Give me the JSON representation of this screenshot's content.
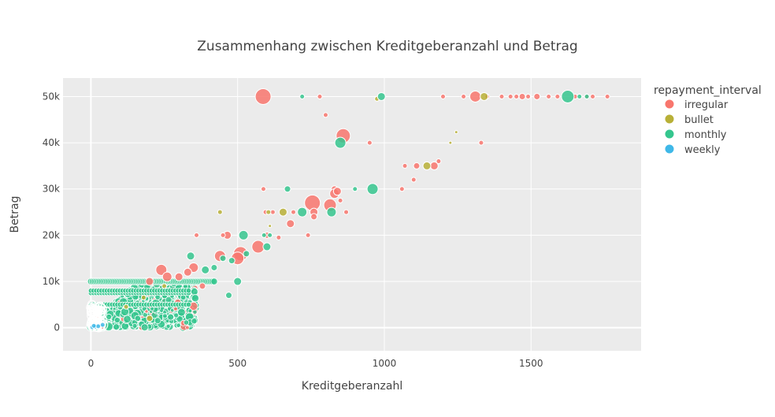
{
  "chart_data": {
    "type": "scatter",
    "title": "Zusammenhang zwischen Kreditgeberanzahl  und Betrag",
    "xlabel": "Kreditgeberanzahl",
    "ylabel": "Betrag",
    "xlim": [
      -95,
      1875
    ],
    "ylim": [
      -5000,
      54000
    ],
    "x_ticks": [
      0,
      500,
      1000,
      1500
    ],
    "x_tick_labels": [
      "0",
      "500",
      "1000",
      "1500"
    ],
    "y_ticks": [
      0,
      10000,
      20000,
      30000,
      40000,
      50000
    ],
    "y_tick_labels": [
      "0",
      "10k",
      "20k",
      "30k",
      "40k",
      "50k"
    ],
    "grid": true,
    "legend_title": "repayment_interval",
    "legend_position": "top-right",
    "bubble_sizes": true,
    "series": [
      {
        "name": "irregular",
        "color": "#f8766d",
        "points": [
          [
            587,
            50000,
            10
          ],
          [
            780,
            50000,
            3
          ],
          [
            1200,
            50000,
            3
          ],
          [
            1270,
            50000,
            3
          ],
          [
            1310,
            50000,
            7
          ],
          [
            1350,
            50000,
            3
          ],
          [
            1400,
            50000,
            3
          ],
          [
            1430,
            50000,
            3
          ],
          [
            1450,
            50000,
            3
          ],
          [
            1470,
            50000,
            4
          ],
          [
            1490,
            50000,
            3
          ],
          [
            1520,
            50000,
            4
          ],
          [
            1560,
            50000,
            3
          ],
          [
            1590,
            50000,
            3
          ],
          [
            1650,
            50000,
            3
          ],
          [
            1690,
            50000,
            3
          ],
          [
            1710,
            50000,
            3
          ],
          [
            1760,
            50000,
            3
          ],
          [
            800,
            46000,
            3
          ],
          [
            860,
            41500,
            9
          ],
          [
            950,
            40000,
            3
          ],
          [
            1330,
            40000,
            3
          ],
          [
            1185,
            36000,
            3
          ],
          [
            1170,
            35000,
            5
          ],
          [
            1110,
            35000,
            4
          ],
          [
            1070,
            35000,
            3
          ],
          [
            1100,
            32000,
            3
          ],
          [
            1060,
            30000,
            3
          ],
          [
            588,
            30000,
            3
          ],
          [
            830,
            30000,
            4
          ],
          [
            830,
            29000,
            6
          ],
          [
            840,
            29500,
            5
          ],
          [
            850,
            27500,
            3
          ],
          [
            755,
            27000,
            10
          ],
          [
            815,
            26500,
            8
          ],
          [
            760,
            25000,
            5
          ],
          [
            620,
            25000,
            3
          ],
          [
            870,
            25000,
            3
          ],
          [
            690,
            25000,
            3
          ],
          [
            595,
            25000,
            3
          ],
          [
            680,
            22500,
            5
          ],
          [
            760,
            24000,
            4
          ],
          [
            740,
            20000,
            3
          ],
          [
            465,
            20000,
            5
          ],
          [
            600,
            20000,
            4
          ],
          [
            450,
            20000,
            3
          ],
          [
            360,
            20000,
            3
          ],
          [
            640,
            19500,
            3
          ],
          [
            570,
            17500,
            8
          ],
          [
            510,
            16000,
            9
          ],
          [
            500,
            15000,
            8
          ],
          [
            440,
            15500,
            7
          ],
          [
            350,
            13000,
            6
          ],
          [
            330,
            12000,
            5
          ],
          [
            300,
            11000,
            5
          ],
          [
            240,
            12500,
            7
          ],
          [
            260,
            11000,
            6
          ],
          [
            200,
            10000,
            5
          ],
          [
            380,
            9000,
            4
          ]
        ]
      },
      {
        "name": "bullet",
        "color": "#b8b037",
        "points": [
          [
            975,
            49500,
            3
          ],
          [
            1340,
            50000,
            5
          ],
          [
            1245,
            42300,
            2
          ],
          [
            1225,
            40000,
            2
          ],
          [
            1145,
            35000,
            5
          ],
          [
            605,
            25000,
            3
          ],
          [
            655,
            25000,
            5
          ],
          [
            440,
            25000,
            3
          ],
          [
            610,
            22000,
            2
          ],
          [
            200,
            2000,
            4
          ],
          [
            180,
            6500,
            3
          ],
          [
            250,
            9000,
            3
          ],
          [
            120,
            4500,
            3
          ]
        ]
      },
      {
        "name": "monthly",
        "color": "#35c68e",
        "points": [
          [
            720,
            50000,
            3
          ],
          [
            990,
            50000,
            5
          ],
          [
            1625,
            50000,
            8
          ],
          [
            1665,
            50000,
            3
          ],
          [
            1690,
            50000,
            3
          ],
          [
            850,
            40000,
            7
          ],
          [
            960,
            30000,
            7
          ],
          [
            900,
            30000,
            3
          ],
          [
            670,
            30000,
            4
          ],
          [
            720,
            25000,
            6
          ],
          [
            820,
            25000,
            6
          ],
          [
            520,
            20000,
            6
          ],
          [
            590,
            20000,
            3
          ],
          [
            610,
            20000,
            3
          ],
          [
            600,
            17500,
            5
          ],
          [
            530,
            16000,
            4
          ],
          [
            340,
            15500,
            5
          ],
          [
            480,
            14500,
            4
          ],
          [
            450,
            15000,
            4
          ],
          [
            420,
            13000,
            4
          ],
          [
            390,
            12500,
            5
          ],
          [
            500,
            10000,
            5
          ],
          [
            470,
            7000,
            4
          ]
        ]
      },
      {
        "name": "weekly",
        "color": "#3fb8e8",
        "points": [
          [
            5,
            100,
            3
          ],
          [
            15,
            200,
            3
          ],
          [
            25,
            300,
            3
          ],
          [
            40,
            600,
            3
          ],
          [
            10,
            400,
            3
          ]
        ]
      }
    ]
  },
  "legend": {
    "title": "repayment_interval",
    "items": [
      {
        "label": "irregular",
        "color": "#f8766d"
      },
      {
        "label": "bullet",
        "color": "#b8b037"
      },
      {
        "label": "monthly",
        "color": "#35c68e"
      },
      {
        "label": "weekly",
        "color": "#3fb8e8"
      }
    ]
  }
}
